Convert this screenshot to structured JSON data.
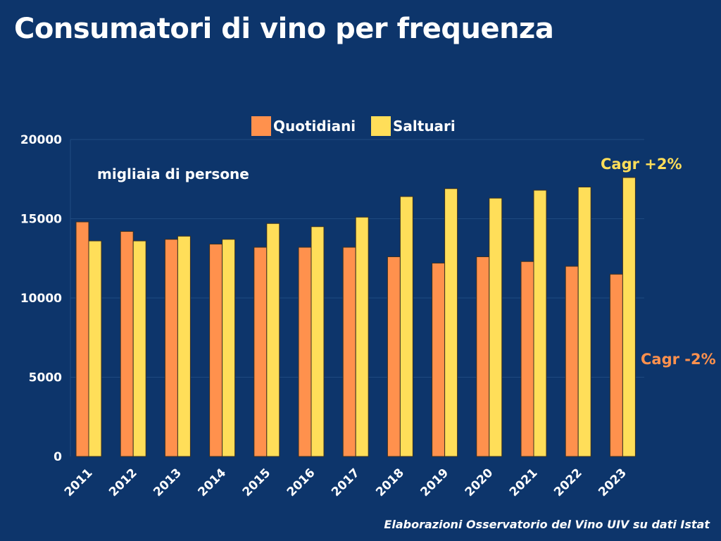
{
  "title": "Consumatori di vino per frequenza",
  "source": "Elaborazioni Osservatorio del Vino UIV su dati Istat",
  "chart_data": {
    "type": "bar",
    "ylabel": "migliaia di persone",
    "ylim": [
      0,
      20000
    ],
    "yticks": [
      0,
      5000,
      10000,
      15000,
      20000
    ],
    "grid": true,
    "legend": "top-center",
    "categories": [
      "2011",
      "2012",
      "2013",
      "2014",
      "2015",
      "2016",
      "2017",
      "2018",
      "2019",
      "2020",
      "2021",
      "2022",
      "2023"
    ],
    "series": [
      {
        "name": "Quotidiani",
        "color": "#ff914d",
        "values": [
          14800,
          14200,
          13700,
          13400,
          13200,
          13200,
          13200,
          12600,
          12200,
          12600,
          12300,
          12000,
          11500
        ]
      },
      {
        "name": "Saltuari",
        "color": "#ffde59",
        "values": [
          13600,
          13600,
          13900,
          13700,
          14700,
          14500,
          15100,
          16400,
          16900,
          16300,
          16800,
          17000,
          17600
        ]
      }
    ],
    "annotations": [
      {
        "text": "Cagr +2%",
        "series": "Saltuari",
        "color": "#ffde59"
      },
      {
        "text": "Cagr -2%",
        "series": "Quotidiani",
        "color": "#ff914d"
      }
    ]
  }
}
